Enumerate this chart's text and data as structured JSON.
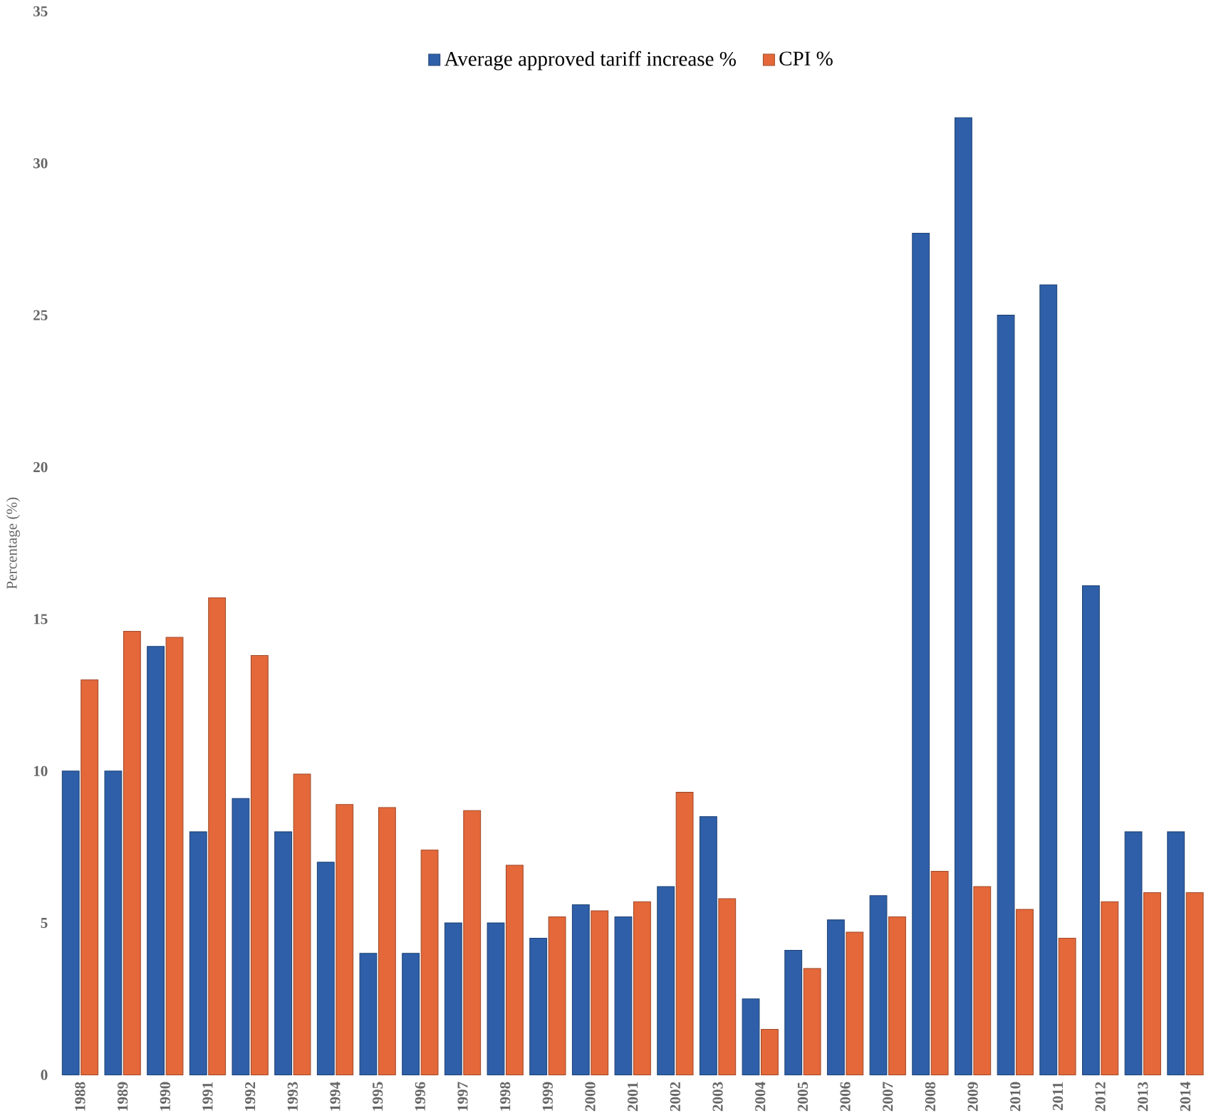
{
  "chart_data": {
    "type": "bar",
    "ylabel": "Percentage (%)",
    "categories": [
      "1988",
      "1989",
      "1990",
      "1991",
      "1992",
      "1993",
      "1994",
      "1995",
      "1996",
      "1997",
      "1998",
      "1999",
      "2000",
      "2001",
      "2002",
      "2003",
      "2004",
      "2005",
      "2006",
      "2007",
      "2008",
      "2009",
      "2010",
      "2011",
      "2012",
      "2013",
      "2014"
    ],
    "series": [
      {
        "name": "Average approved tariff increase %",
        "color": "#2e5fa8",
        "values": [
          10,
          10,
          14.1,
          8,
          9.1,
          8,
          7,
          4,
          4,
          5,
          5,
          4.5,
          5.6,
          5.2,
          6.2,
          8.5,
          2.5,
          4.1,
          5.1,
          5.9,
          27.7,
          31.5,
          25,
          26,
          16.1,
          8,
          8
        ]
      },
      {
        "name": "CPI %",
        "color": "#e4683a",
        "values": [
          13,
          14.6,
          14.4,
          15.7,
          13.8,
          9.9,
          8.9,
          8.8,
          7.4,
          8.7,
          6.9,
          5.2,
          5.4,
          5.7,
          9.3,
          5.8,
          1.5,
          3.5,
          4.7,
          5.2,
          6.7,
          6.2,
          5.45,
          4.5,
          5.7,
          6,
          6
        ]
      }
    ],
    "ylim": [
      0,
      35
    ],
    "yticks": [
      0,
      5,
      10,
      15,
      20,
      25,
      30,
      35
    ],
    "grid": false,
    "legend": "top"
  }
}
